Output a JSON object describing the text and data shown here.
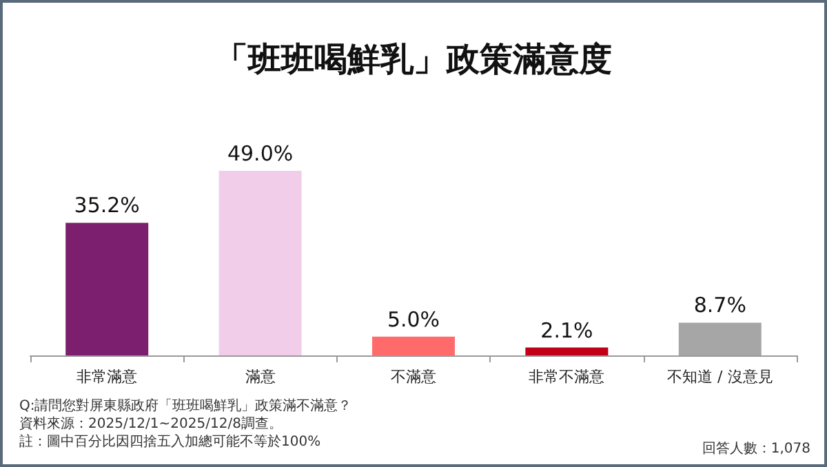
{
  "chart_data": {
    "type": "bar",
    "title": "「班班喝鮮乳」政策滿意度",
    "categories": [
      "非常滿意",
      "滿意",
      "不滿意",
      "非常不滿意",
      "不知道 / 沒意見"
    ],
    "values": [
      35.2,
      49.0,
      5.0,
      2.1,
      8.7
    ],
    "colors": [
      "#7b1f6e",
      "#f2cdea",
      "#ff6b6b",
      "#c00018",
      "#a6a6a6"
    ],
    "value_labels": [
      "35.2%",
      "49.0%",
      "5.0%",
      "2.1%",
      "8.7%"
    ],
    "annotations": [
      "Q:請問您對屏東縣政府「班班喝鮮乳」政策滿不滿意？",
      "資料來源：2025/12/1~2025/12/8調查。",
      "註：圖中百分比因四捨五入加總可能不等於100%",
      "回答人數：1,078"
    ]
  }
}
